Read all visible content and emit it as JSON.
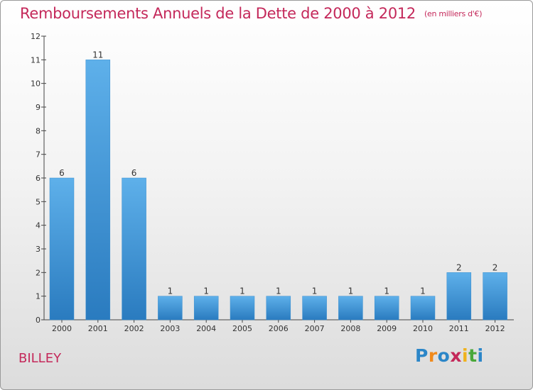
{
  "title": "Remboursements Annuels de la Dette de 2000 à 2012",
  "subtitle": "(en milliers d'€)",
  "commune": "BILLEY",
  "logo": {
    "text": "Proxiti",
    "letters": [
      {
        "ch": "P",
        "color": "#2b86c8"
      },
      {
        "ch": "r",
        "color": "#f08a1c"
      },
      {
        "ch": "o",
        "color": "#2b86c8"
      },
      {
        "ch": "x",
        "color": "#c4285a"
      },
      {
        "ch": "i",
        "color": "#f0b21c"
      },
      {
        "ch": "t",
        "color": "#4aa83a"
      },
      {
        "ch": "i",
        "color": "#2b86c8"
      }
    ]
  },
  "colors": {
    "bar_top": "#5eb0ea",
    "bar_bottom": "#2a7bbf",
    "accent": "#c4285a"
  },
  "chart_data": {
    "type": "bar",
    "title": "Remboursements Annuels de la Dette de 2000 à 2012",
    "subtitle": "(en milliers d'€)",
    "xlabel": "",
    "ylabel": "",
    "categories": [
      "2000",
      "2001",
      "2002",
      "2003",
      "2004",
      "2005",
      "2006",
      "2007",
      "2008",
      "2009",
      "2010",
      "2011",
      "2012"
    ],
    "values": [
      6,
      11,
      6,
      1,
      1,
      1,
      1,
      1,
      1,
      1,
      1,
      2,
      2
    ],
    "data_labels": [
      "6",
      "11",
      "6",
      "1",
      "1",
      "1",
      "1",
      "1",
      "1",
      "1",
      "1",
      "2",
      "2"
    ],
    "y_ticks": [
      0,
      1,
      2,
      3,
      4,
      5,
      6,
      7,
      8,
      9,
      10,
      11,
      12
    ],
    "ylim": [
      0,
      12
    ],
    "grid": false,
    "legend": "none"
  }
}
